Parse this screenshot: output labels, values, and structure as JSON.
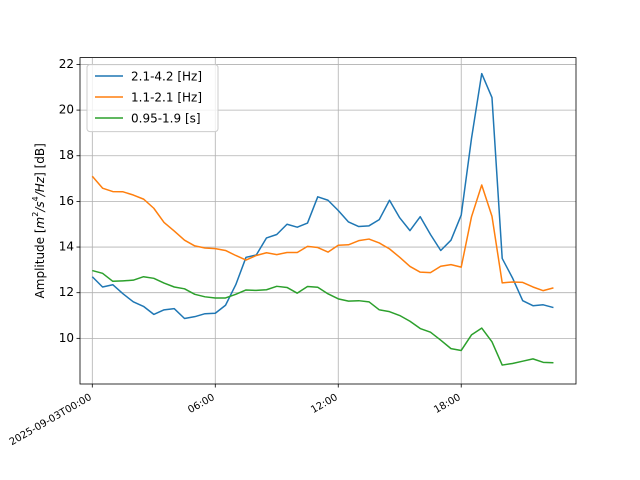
{
  "chart_data": {
    "type": "line",
    "ylabel": "Amplitude [m²/s⁴/Hz] [dB]",
    "ylabel_parts": {
      "prefix": "Amplitude [",
      "m": "m",
      "sq": "2",
      "s": "/s",
      "four": "4",
      "hz": "/Hz",
      "suffix": "] [dB]"
    },
    "x_ticks": [
      "2025-09-03T00:00",
      "06:00",
      "12:00",
      "18:00"
    ],
    "y_ticks": [
      "10",
      "12",
      "14",
      "16",
      "18",
      "20",
      "22"
    ],
    "xlim": [
      -0.6,
      23.6
    ],
    "ylim": [
      8.0,
      22.3
    ],
    "grid": true,
    "legend_position": "top-left",
    "x": [
      0,
      0.5,
      1,
      1.5,
      2,
      2.5,
      3,
      3.5,
      4,
      4.5,
      5,
      5.5,
      6,
      6.5,
      7,
      7.5,
      8,
      8.5,
      9,
      9.5,
      10,
      10.5,
      11,
      11.5,
      12,
      12.5,
      13,
      13.5,
      14,
      14.5,
      15,
      15.5,
      16,
      16.5,
      17,
      17.5,
      18,
      18.5,
      19,
      19.5,
      20,
      20.5,
      21,
      21.5,
      22,
      22.5
    ],
    "series": [
      {
        "name": "2.1-4.2 [Hz]",
        "color": "#1f77b4",
        "values": [
          12.7,
          12.25,
          12.35,
          11.95,
          11.6,
          11.4,
          11.05,
          11.25,
          11.3,
          10.87,
          10.95,
          11.08,
          11.1,
          11.45,
          12.35,
          13.55,
          13.65,
          14.4,
          14.55,
          15.0,
          14.87,
          15.05,
          16.2,
          16.05,
          15.6,
          15.1,
          14.9,
          14.93,
          15.2,
          16.05,
          15.28,
          14.72,
          15.33,
          14.55,
          13.85,
          14.3,
          15.4,
          18.75,
          21.6,
          20.55,
          13.5,
          12.65,
          11.65,
          11.43,
          11.47,
          11.35
        ]
      },
      {
        "name": "1.1-2.1 [Hz]",
        "color": "#ff7f0e",
        "values": [
          17.1,
          16.58,
          16.43,
          16.42,
          16.28,
          16.1,
          15.7,
          15.08,
          14.7,
          14.3,
          14.05,
          13.96,
          13.93,
          13.85,
          13.63,
          13.43,
          13.63,
          13.75,
          13.67,
          13.76,
          13.76,
          14.03,
          13.98,
          13.78,
          14.08,
          14.1,
          14.28,
          14.35,
          14.18,
          13.92,
          13.55,
          13.15,
          12.9,
          12.88,
          13.16,
          13.23,
          13.12,
          15.32,
          16.72,
          15.35,
          12.43,
          12.47,
          12.45,
          12.25,
          12.09,
          12.21
        ]
      },
      {
        "name": "0.95-1.9 [s]",
        "color": "#2ca02c",
        "values": [
          12.97,
          12.85,
          12.5,
          12.52,
          12.55,
          12.7,
          12.63,
          12.42,
          12.25,
          12.17,
          11.93,
          11.82,
          11.77,
          11.77,
          11.93,
          12.12,
          12.1,
          12.13,
          12.28,
          12.23,
          11.98,
          12.27,
          12.24,
          11.95,
          11.73,
          11.63,
          11.65,
          11.6,
          11.25,
          11.17,
          11.0,
          10.75,
          10.43,
          10.27,
          9.92,
          9.55,
          9.47,
          10.15,
          10.45,
          9.85,
          8.83,
          8.9,
          9.0,
          9.1,
          8.95,
          8.93
        ]
      }
    ]
  }
}
